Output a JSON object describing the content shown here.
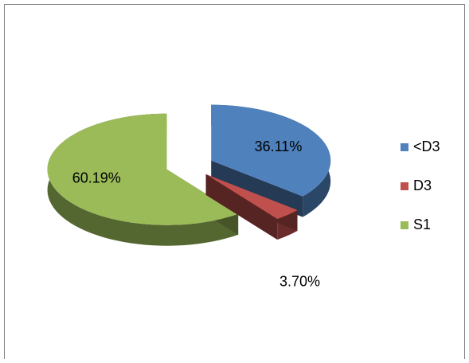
{
  "chart_data": {
    "type": "pie",
    "categories": [
      "<D3",
      "D3",
      "S1"
    ],
    "values": [
      36.11,
      3.7,
      60.19
    ],
    "value_labels": [
      "36.11%",
      "3.70%",
      "60.19%"
    ],
    "colors": [
      "#4f81bd",
      "#c0504d",
      "#9bbb59"
    ],
    "legend": "right"
  }
}
